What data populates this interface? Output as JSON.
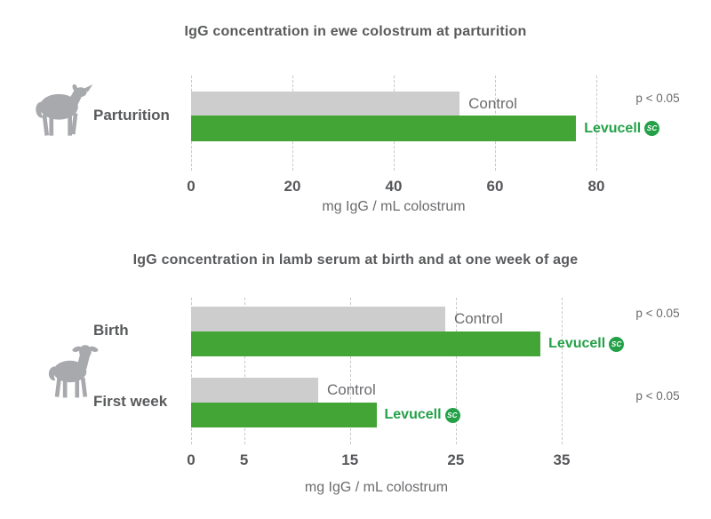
{
  "colors": {
    "bar_green": "#43a536",
    "bar_gray": "#cdcdcd",
    "logo_green": "#24a148",
    "icon_gray": "#a7a9ac",
    "grid_gray": "#c7c8ca",
    "title_text": "#595a5c",
    "secondary_text": "#6a6b6e"
  },
  "chart_data": [
    {
      "type": "bar",
      "orientation": "horizontal",
      "title": "IgG concentration in ewe colostrum at parturition",
      "xlabel": "mg IgG / mL colostrum",
      "axis": {
        "min": 0,
        "max": 80,
        "ticks": [
          0,
          20,
          40,
          60,
          80
        ]
      },
      "grid": "dashed-vertical",
      "legend_position": "labels-at-bar-end",
      "series_labels": {
        "control": "Control",
        "levucell": "Levucell",
        "badge": "SC"
      },
      "animal_icon": "ewe-icon",
      "rows": [
        {
          "label": "Parturition",
          "control": 53,
          "levucell": 76,
          "significance": "p < 0.05"
        }
      ]
    },
    {
      "type": "bar",
      "orientation": "horizontal",
      "title": "IgG concentration in lamb serum at birth and at one week of age",
      "xlabel": "mg IgG / mL colostrum",
      "axis": {
        "min": 0,
        "max": 35,
        "ticks": [
          0,
          5,
          15,
          25,
          35
        ]
      },
      "grid": "dashed-vertical",
      "legend_position": "labels-at-bar-end",
      "series_labels": {
        "control": "Control",
        "levucell": "Levucell",
        "badge": "SC"
      },
      "animal_icon": "lamb-icon",
      "rows": [
        {
          "label": "Birth",
          "control": 24,
          "levucell": 33,
          "significance": "p < 0.05"
        },
        {
          "label": "First week",
          "control": 12,
          "levucell": 17.5,
          "significance": "p < 0.05"
        }
      ]
    }
  ]
}
